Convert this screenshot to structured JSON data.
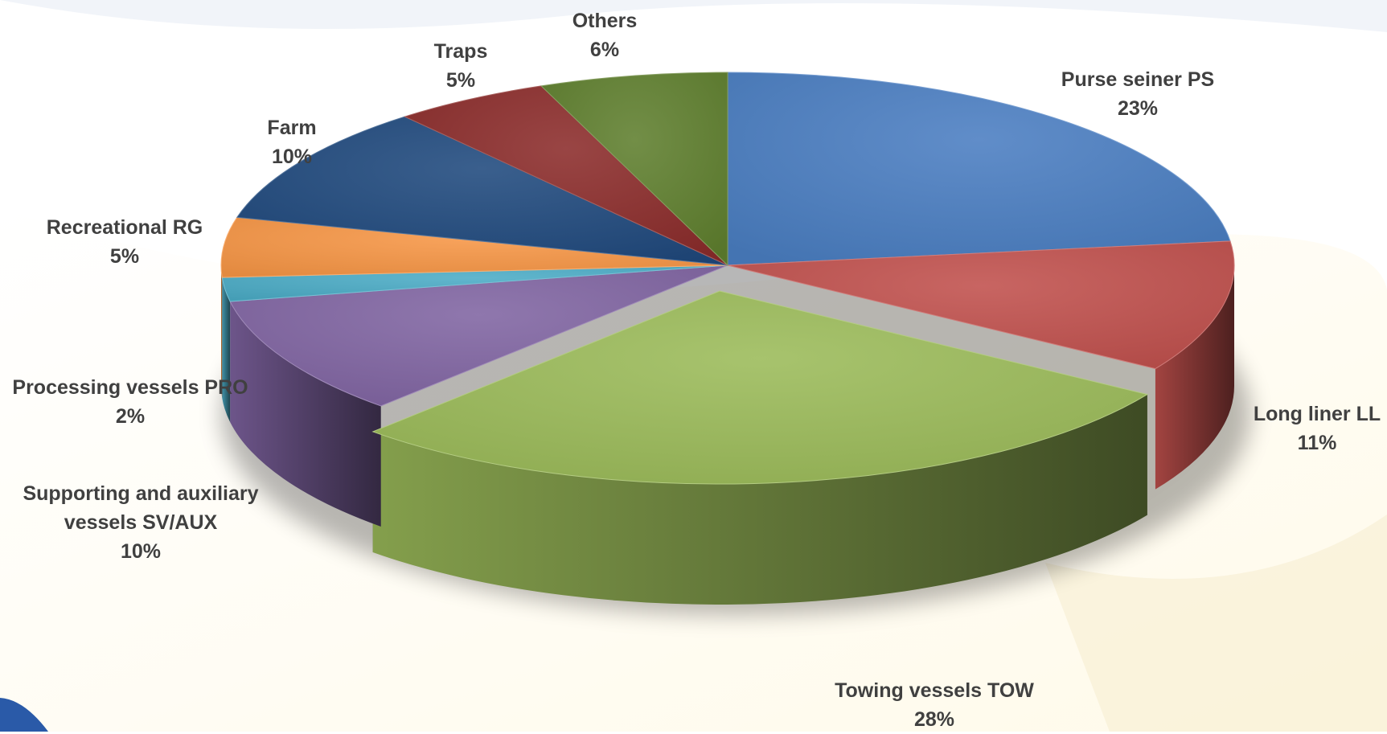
{
  "chart_data": {
    "type": "pie",
    "style": "3d",
    "slices": [
      {
        "key": "ps",
        "name": "Purse seiner PS",
        "value": 23,
        "label": "23%",
        "color": "#4a7ec2"
      },
      {
        "key": "ll",
        "name": "Long liner LL",
        "value": 11,
        "label": "11%",
        "color": "#c0504d"
      },
      {
        "key": "tow",
        "name": "Towing vessels TOW",
        "value": 28,
        "label": "28%",
        "color": "#9bbb59"
      },
      {
        "key": "svaux",
        "name": "Supporting and auxiliary vessels SV/AUX",
        "name_lines": [
          "Supporting and auxiliary",
          "vessels SV/AUX"
        ],
        "value": 10,
        "label": "10%",
        "color": "#8064a2"
      },
      {
        "key": "pro",
        "name": "Processing vessels PRO",
        "value": 2,
        "label": "2%",
        "color": "#4bacc6"
      },
      {
        "key": "rg",
        "name": "Recreational RG",
        "value": 5,
        "label": "5%",
        "color": "#f79646"
      },
      {
        "key": "farm",
        "name": "Farm",
        "value": 10,
        "label": "10%",
        "color": "#1f497d"
      },
      {
        "key": "traps",
        "name": "Traps",
        "value": 5,
        "label": "5%",
        "color": "#8b2c2a"
      },
      {
        "key": "oth",
        "name": "Others",
        "value": 6,
        "label": "6%",
        "color": "#5f7f2e"
      }
    ]
  }
}
